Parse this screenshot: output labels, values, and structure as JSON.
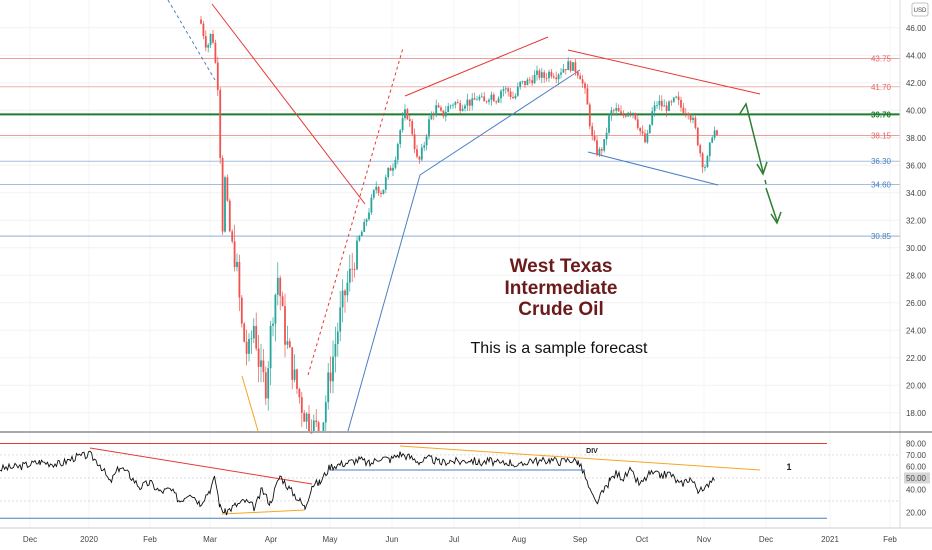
{
  "chart_data": {
    "type": "candlestick",
    "title_lines": [
      "West Texas",
      "Intermediate",
      "Crude Oil"
    ],
    "note": "This is a sample forecast",
    "currency": "USD",
    "x_ticks": [
      "Dec",
      "2020",
      "Feb",
      "Mar",
      "Apr",
      "May",
      "Jun",
      "Jul",
      "Aug",
      "Sep",
      "Oct",
      "Nov",
      "Dec",
      "2021",
      "Feb"
    ],
    "y_ticks": [
      "46.00",
      "44.00",
      "42.00",
      "40.00",
      "38.00",
      "36.00",
      "34.00",
      "32.00",
      "30.00",
      "28.00",
      "26.00",
      "24.00",
      "22.00",
      "20.00",
      "18.00"
    ],
    "ylim": [
      16.6,
      46.8
    ],
    "levels": [
      {
        "value": 43.75,
        "label": "43.75",
        "color": "#e06666"
      },
      {
        "value": 41.7,
        "label": "41.70",
        "color": "#e06666"
      },
      {
        "value": 39.7,
        "label": "39.70",
        "color": "#1e7b2f"
      },
      {
        "value": 38.15,
        "label": "38.15",
        "color": "#e06666"
      },
      {
        "value": 36.3,
        "label": "36.30",
        "color": "#4a7fc1"
      },
      {
        "value": 34.6,
        "label": "34.60",
        "color": "#4a7fc1"
      },
      {
        "value": 30.85,
        "label": "30.85",
        "color": "#4a7fc1"
      }
    ],
    "key_price": {
      "value": 39.7,
      "label": "39.70"
    },
    "indicator": {
      "y_ticks": [
        "80.00",
        "70.00",
        "60.00",
        "50.00",
        "40.00",
        "20.00"
      ],
      "ylim": [
        13,
        83
      ],
      "levels": [
        80,
        70,
        50,
        30,
        15
      ],
      "current_label": "50.00",
      "annotation": "DIV",
      "marker": "1"
    },
    "colors": {
      "up": "#26a69a",
      "down": "#ef5350",
      "key_level": "#1e7b2f",
      "ma": "#9e9e9e",
      "rsi": "#111111"
    }
  }
}
